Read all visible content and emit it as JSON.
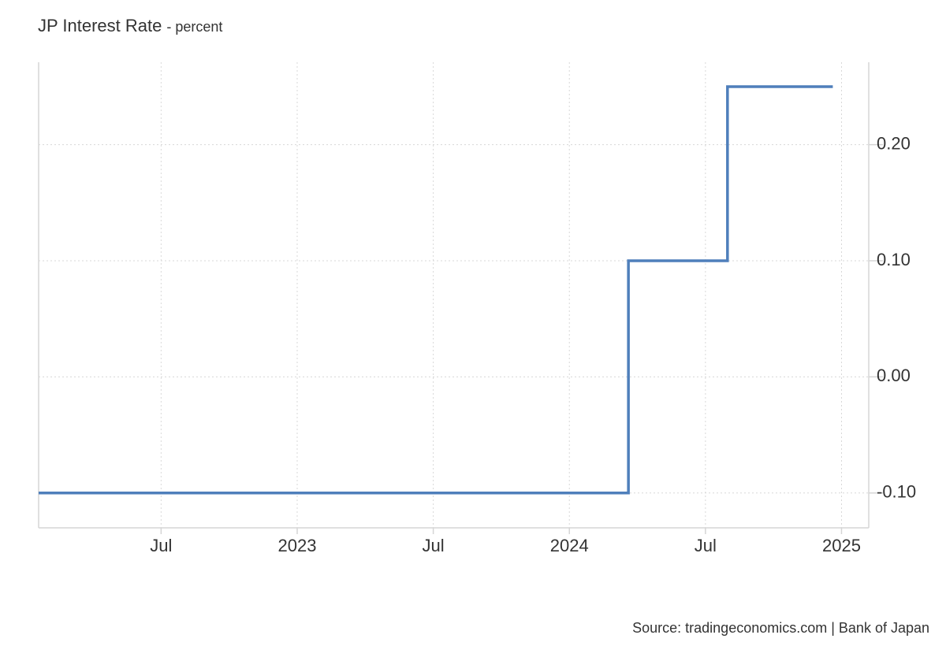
{
  "chart_data": {
    "type": "line",
    "title": "JP Interest Rate",
    "subtitle": "- percent",
    "source": "Source: tradingeconomics.com | Bank of Japan",
    "x": [
      2022.05,
      2024.217,
      2024.217,
      2024.581,
      2024.581,
      2024.968
    ],
    "series": [
      {
        "name": "JP Interest Rate",
        "color": "#4f7fbb",
        "values": [
          -0.1,
          -0.1,
          0.1,
          0.1,
          0.25,
          0.25
        ]
      }
    ],
    "xlim": [
      2022.05,
      2025.1
    ],
    "xticks": [
      {
        "value": 2022.5,
        "label": "Jul"
      },
      2023,
      {
        "value": 2023.5,
        "label": "Jul"
      },
      2024,
      {
        "value": 2024.5,
        "label": "Jul"
      },
      2025
    ],
    "ylim": [
      -0.13,
      0.271
    ],
    "yticks": [
      {
        "value": -0.1,
        "label": "-0.10"
      },
      {
        "value": 0,
        "label": "0.00"
      },
      {
        "value": 0.1,
        "label": "0.10"
      },
      {
        "value": 0.2,
        "label": "0.20"
      }
    ],
    "grid": true
  }
}
